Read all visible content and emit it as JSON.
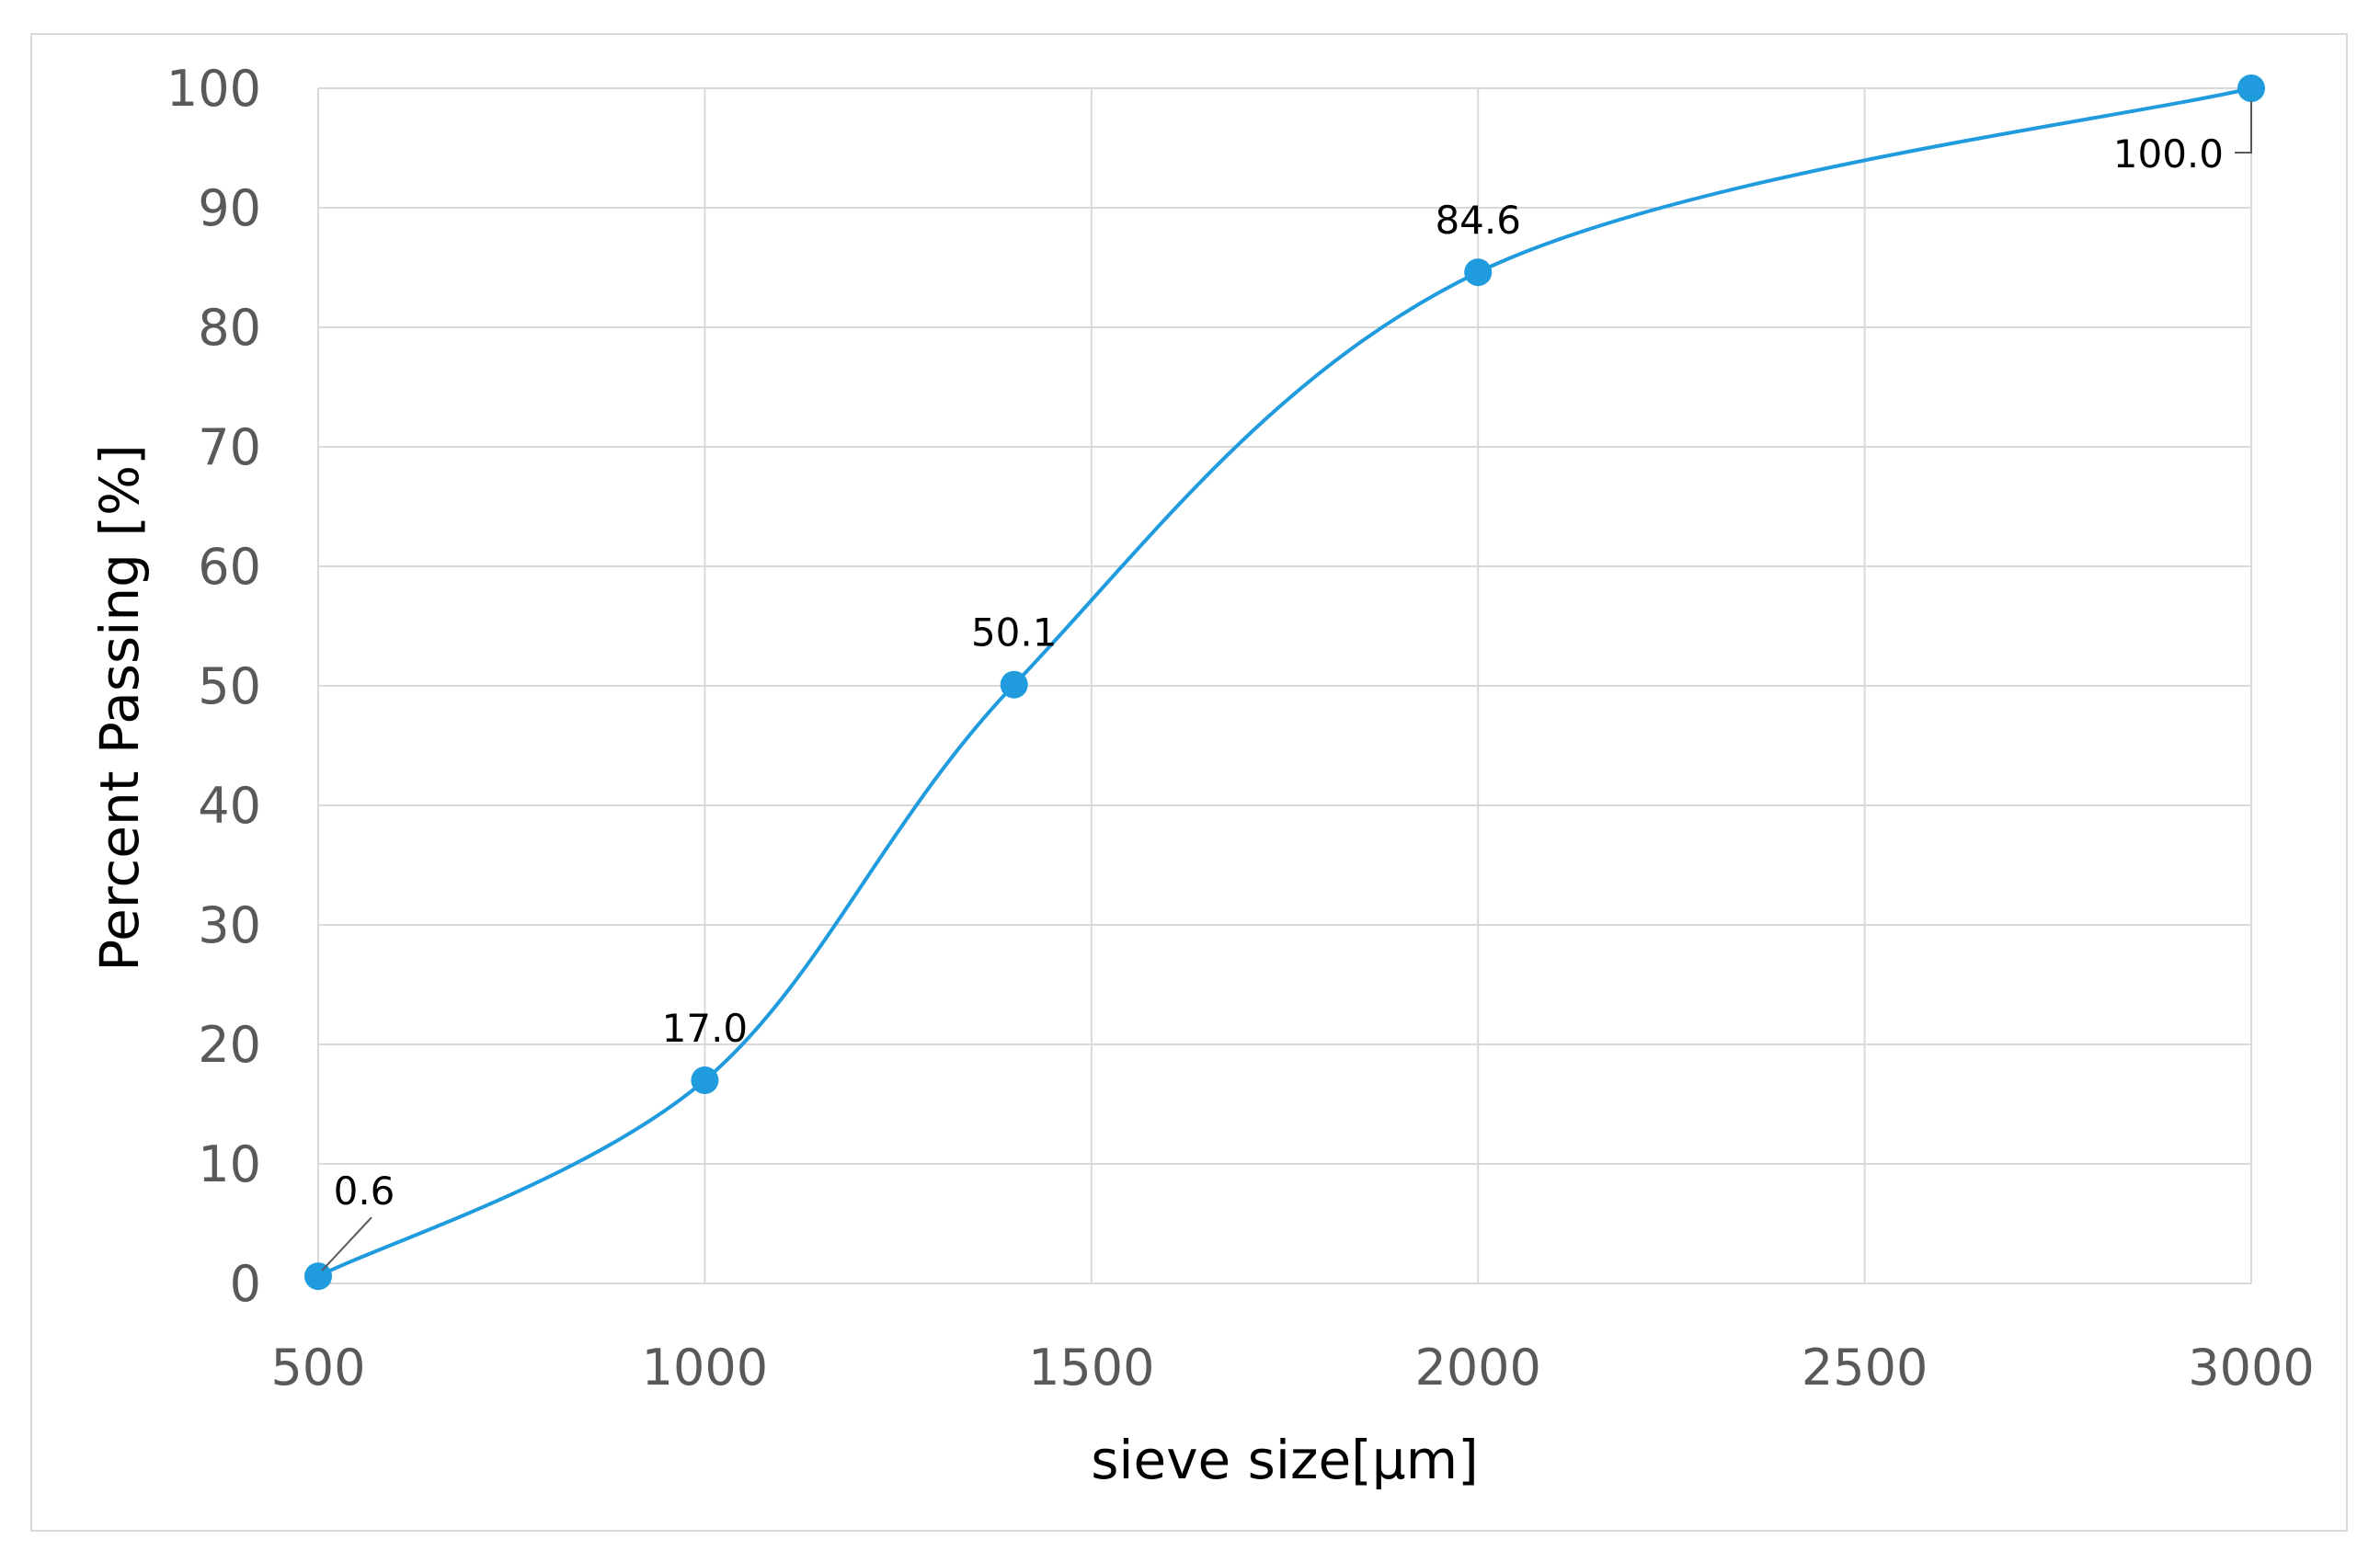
{
  "chart_data": {
    "type": "line",
    "smooth": true,
    "markers": true,
    "title": "",
    "xlabel": "sieve size[μm]",
    "ylabel": "Percent Passing [%]",
    "xlim": [
      500,
      3000
    ],
    "ylim": [
      0,
      100
    ],
    "x_ticks": [
      500,
      1000,
      1500,
      2000,
      2500,
      3000
    ],
    "y_ticks": [
      0,
      10,
      20,
      30,
      40,
      50,
      60,
      70,
      80,
      90,
      100
    ],
    "grid": true,
    "legend": "none",
    "series": [
      {
        "x": [
          500,
          1000,
          1400,
          2000,
          3000
        ],
        "y": [
          0.6,
          17.0,
          50.1,
          84.6,
          100.0
        ],
        "labels": [
          "0.6",
          "17.0",
          "50.1",
          "84.6",
          "100.0"
        ],
        "color": "#1f9bde"
      }
    ],
    "colors": {
      "line": "#1f9bde",
      "grid": "#d9d9d9",
      "tick_text": "#595959",
      "title_text": "#000000"
    }
  }
}
